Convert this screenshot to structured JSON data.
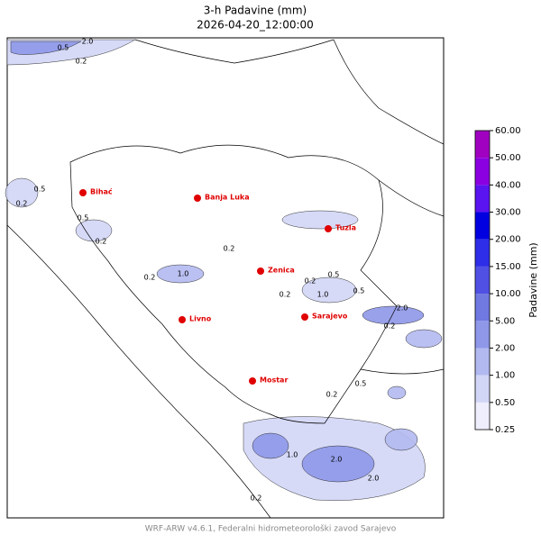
{
  "header": {
    "title": "3-h Padavine (mm)",
    "subtitle": "2026-04-20_12:00:00"
  },
  "cities": [
    "Bihać",
    "Banja Luka",
    "Tuzla",
    "Zenica",
    "Livno",
    "Sarajevo",
    "Mostar"
  ],
  "contour_labels": [
    "2.0",
    "0.5",
    "0.2",
    "0.5",
    "0.2",
    "0.5",
    "0.2",
    "1.0",
    "0.2",
    "0.2",
    "0.2",
    "0.5",
    "0.2",
    "1.0",
    "0.5",
    "2.0",
    "0.2",
    "1.0",
    "2.0",
    "2.0",
    "0.5",
    "0.2",
    "0.2"
  ],
  "colorbar": {
    "label": "Padavine (mm)",
    "levels": [
      {
        "value": 0.25,
        "label": "0.25"
      },
      {
        "value": 0.5,
        "label": "0.50"
      },
      {
        "value": 1,
        "label": "1.00"
      },
      {
        "value": 2,
        "label": "2.00"
      },
      {
        "value": 5,
        "label": "5.00"
      },
      {
        "value": 10,
        "label": "10.00"
      },
      {
        "value": 15,
        "label": "15.00"
      },
      {
        "value": 20,
        "label": "20.00"
      },
      {
        "value": 30,
        "label": "30.00"
      },
      {
        "value": 40,
        "label": "40.00"
      },
      {
        "value": 50,
        "label": "50.00"
      },
      {
        "value": 60,
        "label": "60.00"
      }
    ],
    "colors": [
      "#eeeefc",
      "#d2d6f6",
      "#b2b9f0",
      "#8e97e8",
      "#7079e0",
      "#5050e4",
      "#2e2ee8",
      "#0000e0",
      "#5a14f0",
      "#8a00e0",
      "#a000c0"
    ]
  },
  "footer": "WRF-ARW v4.6.1, Federalni hidrometeorološki zavod Sarajevo"
}
